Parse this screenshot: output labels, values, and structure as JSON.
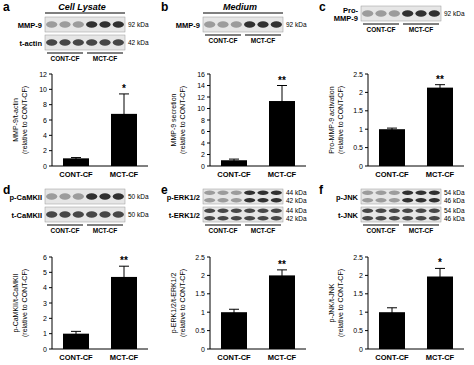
{
  "chart_data": [
    {
      "type": "bar",
      "panel": "a",
      "title": "Cell Lysate",
      "blot": {
        "bands": [
          {
            "label": [
              "MMP-9"
            ],
            "kda": [
              "92 kDa"
            ]
          },
          {
            "label": [
              "t-actin"
            ],
            "kda": [
              "42 kDa"
            ]
          }
        ],
        "groups": [
          "CONT-CF",
          "MCT-CF"
        ]
      },
      "y_label": [
        "MMP-9/t-actin",
        "(relative to CONT-CF)"
      ],
      "categories": [
        "CONT-CF",
        "MCT-CF"
      ],
      "values": [
        1,
        6.8
      ],
      "errors": [
        0.1,
        2.6
      ],
      "significance": [
        null,
        "*"
      ],
      "color": "#000000",
      "ylim": [
        0,
        12
      ],
      "yticks": [
        0,
        2,
        4,
        6,
        8,
        10,
        12
      ]
    },
    {
      "type": "bar",
      "panel": "b",
      "title": "Medium",
      "blot": {
        "bands": [
          {
            "label": [
              "MMP-9"
            ],
            "kda": [
              "92 kDa"
            ]
          }
        ],
        "groups": [
          "CONT-CF",
          "MCT-CF"
        ]
      },
      "y_label": [
        "MMP-9 secretion",
        "(relative to CONT-CF)"
      ],
      "categories": [
        "CONT-CF",
        "MCT-CF"
      ],
      "values": [
        1,
        11.3
      ],
      "errors": [
        0.2,
        2.7
      ],
      "significance": [
        null,
        "**"
      ],
      "color": "#000000",
      "ylim": [
        0,
        16
      ],
      "yticks": [
        0,
        2,
        4,
        6,
        8,
        10,
        12,
        14,
        16
      ]
    },
    {
      "type": "bar",
      "panel": "c",
      "blot": {
        "bands": [
          {
            "label": [
              "Pro-",
              "MMP-9"
            ],
            "kda": [
              "92 kDa"
            ]
          }
        ],
        "groups": [
          "CONT-CF",
          "MCT-CF"
        ]
      },
      "y_label": [
        "Pro-MMP-9 activation",
        "(relative to CONT-CF)"
      ],
      "categories": [
        "CONT-CF",
        "MCT-CF"
      ],
      "values": [
        1,
        2.13
      ],
      "errors": [
        0.03,
        0.08
      ],
      "significance": [
        null,
        "**"
      ],
      "color": "#000000",
      "ylim": [
        0,
        2.5
      ],
      "yticks": [
        0,
        0.5,
        1,
        1.5,
        2,
        2.5
      ]
    },
    {
      "type": "bar",
      "panel": "d",
      "blot": {
        "bands": [
          {
            "label": [
              "p-CaMKII"
            ],
            "kda": [
              "50 kDa"
            ]
          },
          {
            "label": [
              "t-CaMKII"
            ],
            "kda": [
              "50 kDa"
            ]
          }
        ],
        "groups": [
          "CONT-CF",
          "MCT-CF"
        ]
      },
      "y_label": [
        "p-CaMKII/t-CaMKII",
        "(relative to CONT-CF)"
      ],
      "categories": [
        "CONT-CF",
        "MCT-CF"
      ],
      "values": [
        1,
        4.7
      ],
      "errors": [
        0.15,
        0.7
      ],
      "significance": [
        null,
        "**"
      ],
      "color": "#000000",
      "ylim": [
        0,
        6
      ],
      "yticks": [
        0,
        1,
        2,
        3,
        4,
        5,
        6
      ]
    },
    {
      "type": "bar",
      "panel": "e",
      "blot": {
        "bands": [
          {
            "label": [
              "p-ERK1/2"
            ],
            "kda": [
              "44 kDa",
              "42 kDa"
            ]
          },
          {
            "label": [
              "t-ERK1/2"
            ],
            "kda": [
              "44 kDa",
              "42 kDa"
            ]
          }
        ],
        "groups": [
          "CONT-CF",
          "MCT-CF"
        ]
      },
      "y_label": [
        "p-ERK1/2/t-ERK1/2",
        "(relative to CONT-CF)"
      ],
      "categories": [
        "CONT-CF",
        "MCT-CF"
      ],
      "values": [
        1,
        2.0
      ],
      "errors": [
        0.08,
        0.15
      ],
      "significance": [
        null,
        "**"
      ],
      "color": "#000000",
      "ylim": [
        0,
        2.5
      ],
      "yticks": [
        0,
        0.5,
        1,
        1.5,
        2,
        2.5
      ]
    },
    {
      "type": "bar",
      "panel": "f",
      "blot": {
        "bands": [
          {
            "label": [
              "p-JNK"
            ],
            "kda": [
              "54 kDa",
              "46 kDa"
            ]
          },
          {
            "label": [
              "t-JNK"
            ],
            "kda": [
              "54 kDa",
              "46 kDa"
            ]
          }
        ],
        "groups": [
          "CONT-CF",
          "MCT-CF"
        ]
      },
      "y_label": [
        "p-JNK/t-JNK",
        "(relative to CONT-CF)"
      ],
      "categories": [
        "CONT-CF",
        "MCT-CF"
      ],
      "values": [
        1,
        1.97
      ],
      "errors": [
        0.12,
        0.22
      ],
      "significance": [
        null,
        "*"
      ],
      "color": "#000000",
      "ylim": [
        0,
        2.5
      ],
      "yticks": [
        0,
        0.5,
        1,
        1.5,
        2,
        2.5
      ]
    }
  ]
}
